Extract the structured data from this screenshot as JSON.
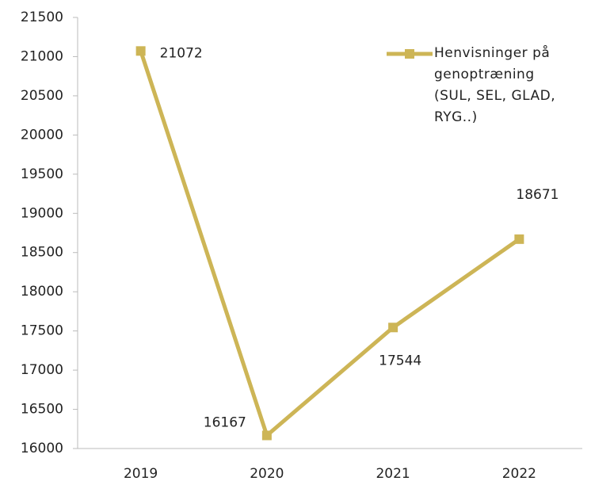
{
  "chart_data": {
    "type": "line",
    "categories": [
      "2019",
      "2020",
      "2021",
      "2022"
    ],
    "series": [
      {
        "name": "Henvisninger på genoptræning (SUL, SEL, GLAD, RYG..)",
        "color": "#cdb556",
        "values": [
          21072,
          16167,
          17544,
          18671
        ]
      }
    ],
    "ylim": [
      16000,
      21500
    ],
    "yticks": [
      16000,
      16500,
      17000,
      17500,
      18000,
      18500,
      19000,
      19500,
      20000,
      20500,
      21000,
      21500
    ],
    "grid": false,
    "legend": "upper right"
  }
}
